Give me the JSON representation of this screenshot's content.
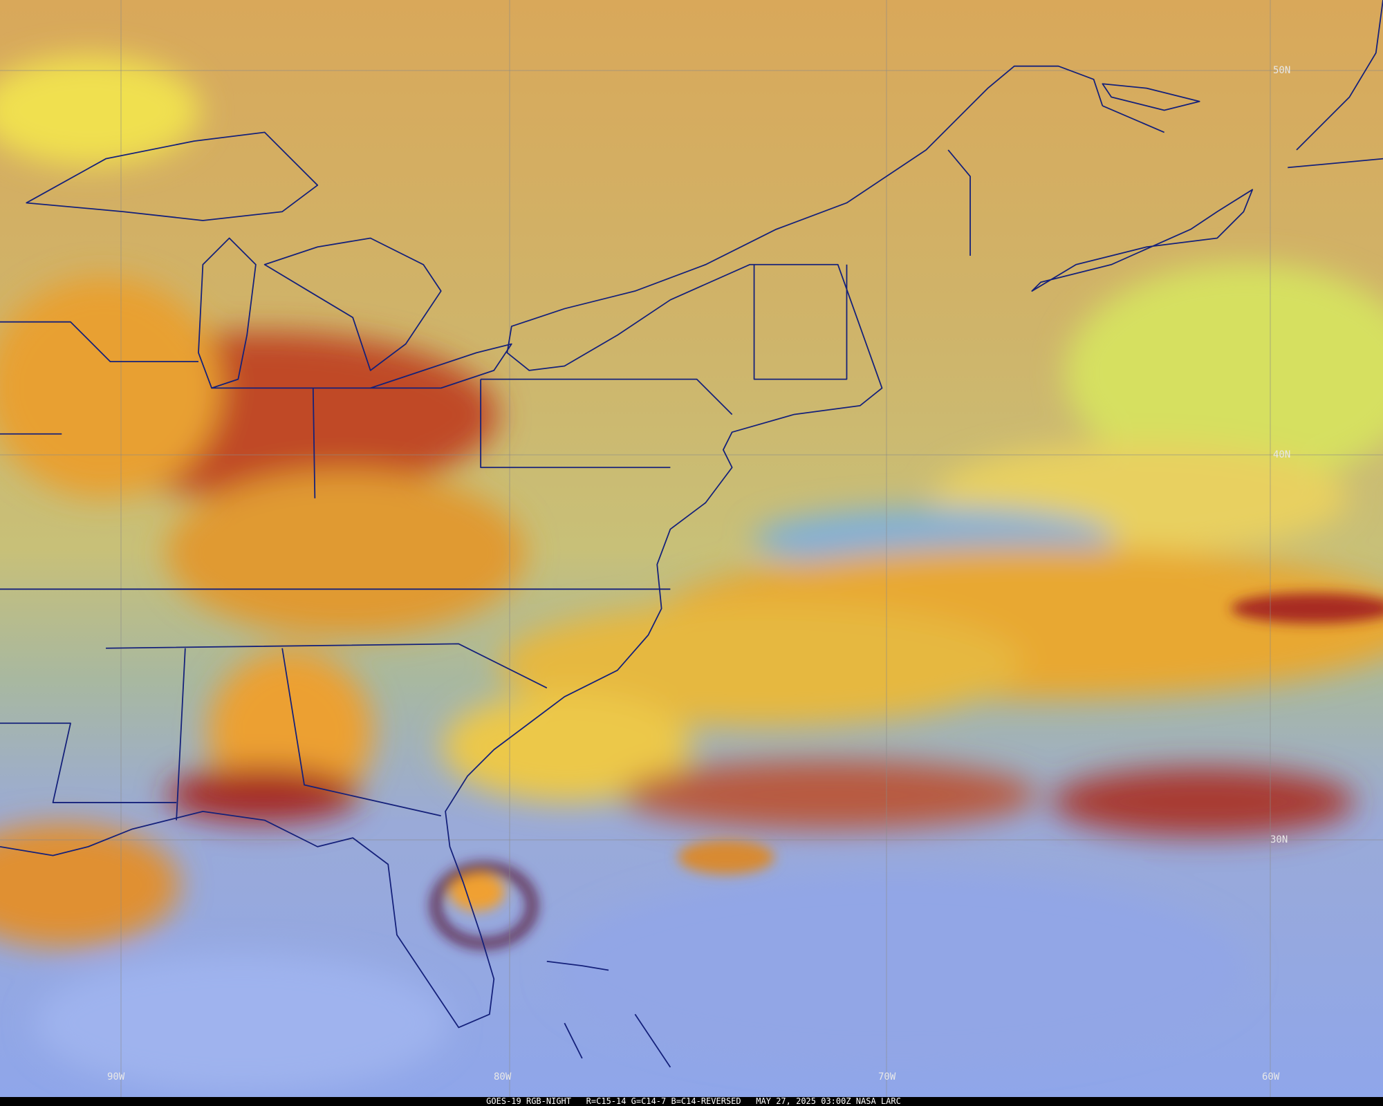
{
  "map": {
    "latitude_labels": [
      "50N",
      "40N",
      "30N"
    ],
    "longitude_labels": [
      "90W",
      "80W",
      "70W",
      "60W"
    ],
    "caption": "GOES-19 RGB-NIGHT   R=C15-14 G=C14-7 B=C14-REVERSED   MAY 27, 2025 03:00Z NASA LARC"
  }
}
